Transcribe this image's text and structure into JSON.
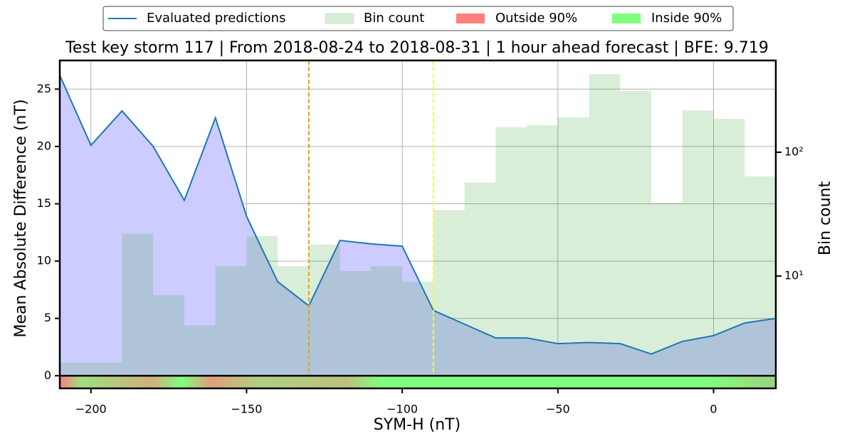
{
  "chart_data": {
    "type": "line",
    "title": "Test key storm 117 | From 2018-08-24 to 2018-08-31 | 1 hour ahead forecast | BFE: 9.719",
    "xlabel": "SYM-H (nT)",
    "ylabel": "Mean Absolute Difference (nT)",
    "y2label": "Bin count",
    "x": [
      -210,
      -200,
      -190,
      -180,
      -170,
      -160,
      -150,
      -140,
      -130,
      -120,
      -110,
      -100,
      -90,
      -80,
      -70,
      -60,
      -50,
      -40,
      -30,
      -20,
      -10,
      0,
      10,
      20
    ],
    "series": [
      {
        "name": "Evaluated predictions",
        "color": "#1f77b4",
        "fill": "#ccccff",
        "values": [
          26.2,
          20.1,
          23.1,
          20.0,
          15.3,
          22.5,
          13.9,
          8.2,
          6.1,
          11.8,
          11.5,
          11.3,
          5.7,
          4.5,
          3.3,
          3.3,
          2.8,
          2.9,
          2.8,
          1.9,
          3.0,
          3.5,
          4.6,
          5.0
        ]
      }
    ],
    "histogram": {
      "name": "Bin count",
      "color": "#2ca02c",
      "axis": "y2",
      "bins": [
        -210,
        -200,
        -190,
        -180,
        -170,
        -160,
        -150,
        -140,
        -130,
        -120,
        -110,
        -100,
        -90,
        -80,
        -70,
        -60,
        -50,
        -40,
        -30,
        -20,
        -10,
        0,
        10,
        20
      ],
      "counts": [
        2,
        2,
        22,
        7,
        4,
        12,
        21,
        12,
        18,
        11,
        12,
        9,
        34,
        57,
        159,
        165,
        191,
        428,
        312,
        39,
        218,
        186,
        64
      ]
    },
    "bands": [
      {
        "name": "Outside 90%",
        "color": "#ff7f7f"
      },
      {
        "name": "Inside 90%",
        "color": "#7fff7f"
      }
    ],
    "vlines": [
      {
        "x": -130,
        "color": "#daa520"
      },
      {
        "x": -90,
        "color": "#ffff00"
      }
    ],
    "xlim": [
      -210,
      20
    ],
    "ylim": [
      -1.1,
      27.5
    ],
    "y2lim": [
      1.24,
      551
    ],
    "y2_log": true,
    "xticks": [
      {
        "value": -200,
        "label": "−200"
      },
      {
        "value": -150,
        "label": "−150"
      },
      {
        "value": -100,
        "label": "−100"
      },
      {
        "value": -50,
        "label": "−50"
      },
      0
    ],
    "yticks": [
      0,
      5,
      10,
      15,
      20,
      25
    ],
    "y2ticks": [
      {
        "value": 10,
        "label": "10¹"
      },
      {
        "value": 100,
        "label": "10²"
      }
    ],
    "grid": true
  }
}
